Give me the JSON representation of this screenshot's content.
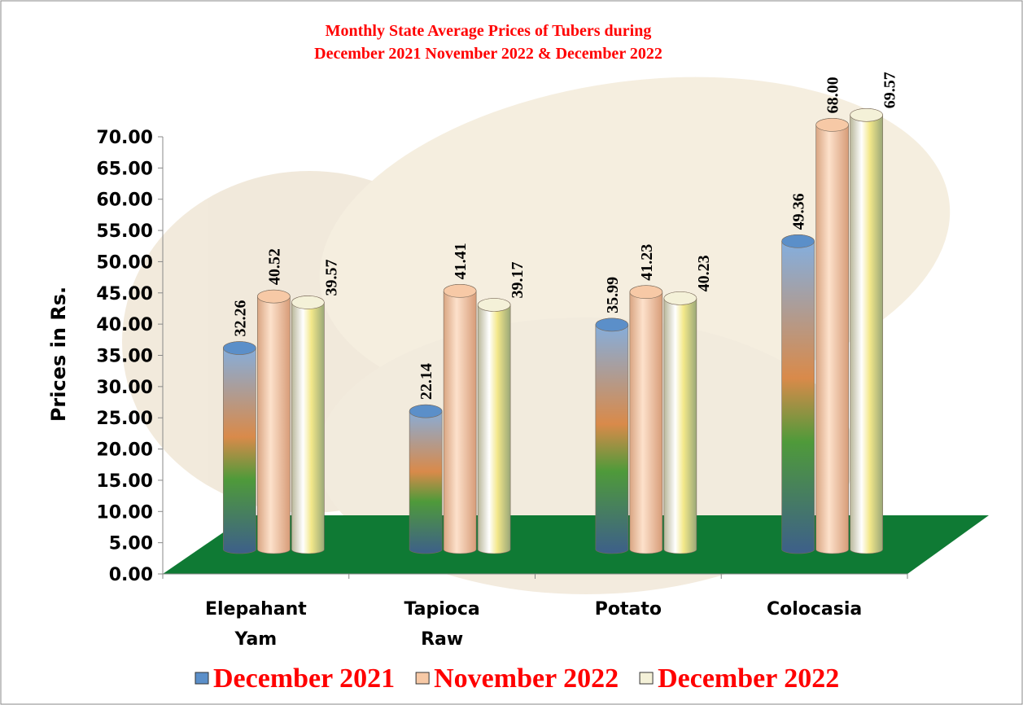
{
  "chart_data": {
    "type": "bar",
    "title": "Monthly State Average  Prices of Tubers during",
    "subtitle": "December 2021  November 2022  &  December 2022",
    "y_label": "Prices in Rs.",
    "categories": [
      "Elepahant Yam",
      "Tapioca Raw",
      "Potato",
      "Colocasia"
    ],
    "series": [
      {
        "name": "December 2021",
        "color": "#5b8fc9",
        "values": [
          32.26,
          22.14,
          35.99,
          49.36
        ],
        "value_labels": [
          "32.26",
          "22.14",
          "35.99",
          "49.36"
        ]
      },
      {
        "name": "November 2022",
        "color": "#f7c9a6",
        "values": [
          40.52,
          41.41,
          41.23,
          68.0
        ],
        "value_labels": [
          "40.52",
          "41.41",
          "41.23",
          "68.00"
        ]
      },
      {
        "name": "December 2022",
        "color": "#f4f1d8",
        "values": [
          39.57,
          39.17,
          40.23,
          69.57
        ],
        "value_labels": [
          "39.57",
          "39.17",
          "40.23",
          "69.57"
        ]
      }
    ],
    "ylim": [
      0,
      70
    ],
    "yticks": [
      {
        "value": 0,
        "label": "0.00"
      },
      {
        "value": 5,
        "label": "5.00"
      },
      {
        "value": 10,
        "label": "10.00"
      },
      {
        "value": 15,
        "label": "15.00"
      },
      {
        "value": 20,
        "label": "20.00"
      },
      {
        "value": 25,
        "label": "25.00"
      },
      {
        "value": 30,
        "label": "30.00"
      },
      {
        "value": 35,
        "label": "35.00"
      },
      {
        "value": 40,
        "label": "40.00"
      },
      {
        "value": 45,
        "label": "45.00"
      },
      {
        "value": 50,
        "label": "50.00"
      },
      {
        "value": 55,
        "label": "55.00"
      },
      {
        "value": 60,
        "label": "60.00"
      },
      {
        "value": 65,
        "label": "65.00"
      },
      {
        "value": 70,
        "label": "70.00"
      }
    ]
  }
}
